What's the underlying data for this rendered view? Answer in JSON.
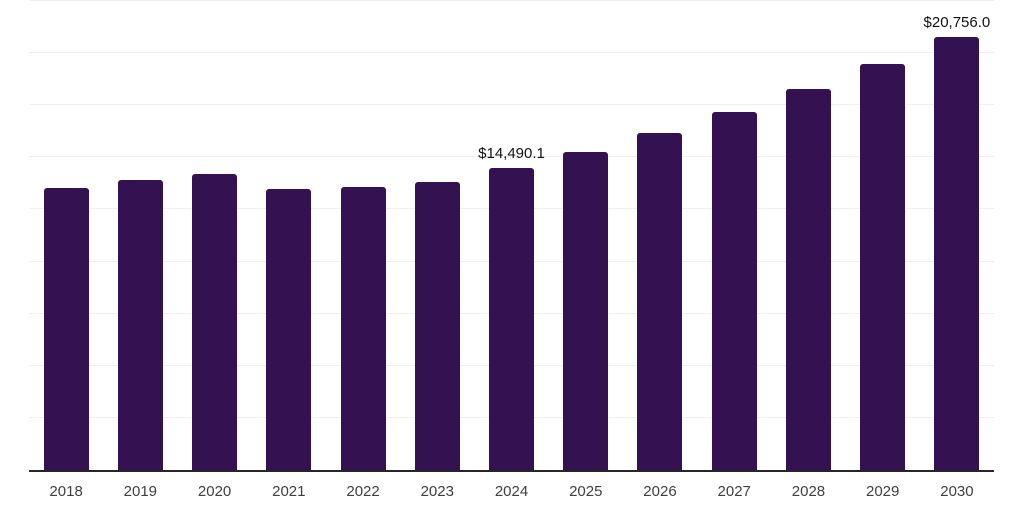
{
  "chart_data": {
    "type": "bar",
    "title": "",
    "xlabel": "",
    "ylabel": "",
    "categories": [
      "2018",
      "2019",
      "2020",
      "2021",
      "2022",
      "2023",
      "2024",
      "2025",
      "2026",
      "2027",
      "2028",
      "2029",
      "2030"
    ],
    "values": [
      13530,
      13910,
      14200,
      13480,
      13580,
      13820,
      14490.1,
      15260,
      16170,
      17180,
      18280,
      19480,
      20756.0
    ],
    "data_labels": [
      null,
      null,
      null,
      null,
      null,
      null,
      "$14,490.1",
      null,
      null,
      null,
      null,
      null,
      "$20,756.0"
    ],
    "ylim": [
      0,
      22500
    ],
    "gridline_step": 2500,
    "grid": "horizontal-only",
    "y_axis_tick_labels_visible": false,
    "legend": "none",
    "colors": {
      "bar": "#341150",
      "axis_line": "#262626",
      "gridline": "#f0f0f0",
      "data_label": "#111111",
      "tick_label": "#3f3f3f",
      "background": "#ffffff"
    }
  }
}
